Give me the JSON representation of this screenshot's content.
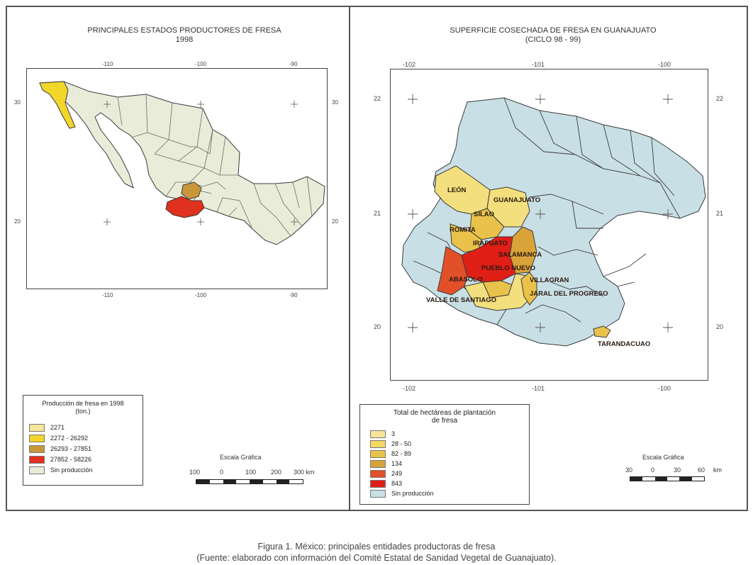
{
  "left_panel": {
    "title_line1": "PRINCIPALES ESTADOS PRODUCTORES DE FRESA",
    "title_line2": "1998",
    "top_ticks": [
      "-110",
      "-100",
      "-90"
    ],
    "bottom_ticks": [
      "-110",
      "-100",
      "-90"
    ],
    "left_ticks": [
      "30",
      "20"
    ],
    "right_ticks": [
      "30",
      "20"
    ],
    "legend": {
      "title_line1": "Producción de fresa en 1998",
      "title_line2": "(ton.)",
      "items": [
        {
          "label": "2271",
          "color": "#f6e79a"
        },
        {
          "label": "2272 - 26292",
          "color": "#f2d62a"
        },
        {
          "label": "26293 - 27851",
          "color": "#c9963a"
        },
        {
          "label": "27852 - 58226",
          "color": "#e0301e"
        },
        {
          "label": "Sin producción",
          "color": "#e9ecd8"
        }
      ]
    },
    "scale": {
      "title": "Escala Gráfica",
      "labels": [
        "100",
        "0",
        "100",
        "200",
        "300 km"
      ]
    },
    "states_colored": [
      {
        "state": "Baja California",
        "color": "#f2d62a"
      },
      {
        "state": "Guanajuato",
        "color": "#c9963a"
      },
      {
        "state": "Michoacán",
        "color": "#e0301e"
      }
    ]
  },
  "right_panel": {
    "title_line1": "SUPERFICIE COSECHADA DE FRESA EN GUANAJUATO",
    "title_line2": "(CICLO 98 - 99)",
    "top_ticks": [
      "-102",
      "-101",
      "-100"
    ],
    "bottom_ticks": [
      "-102",
      "-101",
      "-100"
    ],
    "left_ticks": [
      "22",
      "21",
      "20"
    ],
    "right_ticks": [
      "22",
      "21",
      "20"
    ],
    "municipalities": [
      {
        "name": "LEÓN",
        "color": "#f3df7e"
      },
      {
        "name": "GUANAJUATO",
        "color": "#f3df7e"
      },
      {
        "name": "SILAO",
        "color": "#e8c24a"
      },
      {
        "name": "ROMITA",
        "color": "#e8c24a"
      },
      {
        "name": "IRAPUATO",
        "color": "#e01f17"
      },
      {
        "name": "SALAMANCA",
        "color": "#d9a33a"
      },
      {
        "name": "PUEBLO NUEVO",
        "color": "#e8c24a"
      },
      {
        "name": "ABASOLO",
        "color": "#e2502a"
      },
      {
        "name": "VALLE DE SANTIAGO",
        "color": "#f3df7e"
      },
      {
        "name": "VILLAGRAN",
        "color": "#c9dfe6"
      },
      {
        "name": "JARAL DEL PROGRESO",
        "color": "#e8c24a"
      },
      {
        "name": "TARANDACUAO",
        "color": "#e8c24a"
      }
    ],
    "legend": {
      "title_line1": "Total de hectáreas de plantación",
      "title_line2": "de fresa",
      "items": [
        {
          "label": "3",
          "color": "#f6e59a"
        },
        {
          "label": "28 - 50",
          "color": "#f3d862"
        },
        {
          "label": "82 - 89",
          "color": "#e8c24a"
        },
        {
          "label": "134",
          "color": "#d9a33a"
        },
        {
          "label": "249",
          "color": "#e2502a"
        },
        {
          "label": "843",
          "color": "#e01f17"
        },
        {
          "label": "Sin producción",
          "color": "#c9dfe6"
        }
      ]
    },
    "scale": {
      "title": "Escala Gráfica",
      "labels": [
        "30",
        "0",
        "30",
        "60",
        "km"
      ]
    }
  },
  "caption": {
    "line1": "Figura 1. México: principales entidades productoras de fresa",
    "line2": "(Fuente: elaborado con información del Comité Estatal de Sanidad Vegetal de Guanajuato)."
  }
}
